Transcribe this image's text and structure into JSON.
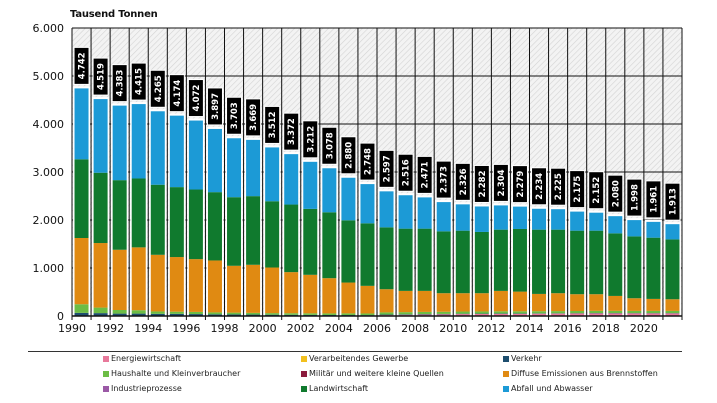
{
  "chart_data": {
    "type": "bar",
    "stacked": true,
    "title": "",
    "ylabel": "Tausend Tonnen",
    "xlabel": "",
    "ylim": [
      0,
      6000
    ],
    "yticks": [
      0,
      1000,
      2000,
      3000,
      4000,
      5000,
      6000
    ],
    "ytick_labels": [
      "0",
      "1.000",
      "2.000",
      "3.000",
      "4.000",
      "5.000",
      "6.000"
    ],
    "grid": true,
    "legend_position": "bottom",
    "categories": [
      "1990",
      "1991",
      "1992",
      "1993",
      "1994",
      "1995",
      "1996",
      "1997",
      "1998",
      "1999",
      "2000",
      "2001",
      "2002",
      "2003",
      "2004",
      "2005",
      "2006",
      "2007",
      "2008",
      "2009",
      "2010",
      "2011",
      "2012",
      "2013",
      "2014",
      "2015",
      "2016",
      "2017",
      "2018",
      "2019",
      "2020",
      "2021"
    ],
    "xtick_labels": [
      "1990",
      "1992",
      "1994",
      "1996",
      "1998",
      "2000",
      "2002",
      "2004",
      "2006",
      "2008",
      "2010",
      "2012",
      "2014",
      "2016",
      "2018",
      "2020"
    ],
    "totals": [
      4742,
      4519,
      4383,
      4415,
      4265,
      4174,
      4072,
      3897,
      3703,
      3669,
      3512,
      3372,
      3212,
      3078,
      2880,
      2748,
      2597,
      2516,
      2471,
      2373,
      2326,
      2282,
      2304,
      2279,
      2234,
      2225,
      2175,
      2152,
      2080,
      1998,
      1961,
      1913
    ],
    "total_labels": [
      "4.742",
      "4.519",
      "4.383",
      "4.415",
      "4.265",
      "4.174",
      "4.072",
      "3.897",
      "3.703",
      "3.669",
      "3.512",
      "3.372",
      "3.212",
      "3.078",
      "2.880",
      "2.748",
      "2.597",
      "2.516",
      "2.471",
      "2.373",
      "2.326",
      "2.282",
      "2.304",
      "2.279",
      "2.234",
      "2.225",
      "2.175",
      "2.152",
      "2.080",
      "1.998",
      "1.961",
      "1.913"
    ],
    "series": [
      {
        "name": "Energiewirtschaft",
        "color": "#e8799b",
        "values": [
          5,
          5,
          5,
          5,
          5,
          5,
          5,
          5,
          5,
          5,
          5,
          5,
          5,
          5,
          5,
          5,
          20,
          25,
          30,
          35,
          40,
          42,
          45,
          45,
          48,
          50,
          52,
          55,
          55,
          55,
          55,
          55
        ]
      },
      {
        "name": "Verkehr",
        "color": "#1d4e6e",
        "values": [
          60,
          55,
          45,
          45,
          40,
          40,
          35,
          30,
          28,
          25,
          22,
          20,
          18,
          16,
          15,
          13,
          10,
          10,
          10,
          8,
          8,
          8,
          8,
          8,
          7,
          7,
          7,
          7,
          7,
          6,
          6,
          6
        ]
      },
      {
        "name": "Haushalte und Kleinverbraucher",
        "color": "#6cbd45",
        "values": [
          180,
          115,
          75,
          70,
          50,
          45,
          45,
          40,
          37,
          35,
          33,
          33,
          33,
          33,
          35,
          35,
          45,
          45,
          45,
          45,
          45,
          45,
          45,
          45,
          45,
          45,
          45,
          45,
          45,
          45,
          45,
          45
        ]
      },
      {
        "name": "Verarbeitendes Gewerbe",
        "color": "#f2c01e",
        "values": [
          0,
          0,
          0,
          0,
          0,
          0,
          0,
          0,
          0,
          0,
          0,
          0,
          0,
          0,
          0,
          0,
          0,
          0,
          0,
          0,
          0,
          0,
          0,
          0,
          0,
          0,
          0,
          0,
          0,
          0,
          0,
          0
        ]
      },
      {
        "name": "Militär und weitere kleine Quellen",
        "color": "#8b1a3c",
        "values": [
          0,
          0,
          0,
          0,
          0,
          0,
          0,
          0,
          0,
          0,
          0,
          0,
          0,
          0,
          0,
          0,
          0,
          0,
          0,
          0,
          0,
          0,
          0,
          0,
          0,
          0,
          0,
          0,
          0,
          0,
          0,
          0
        ]
      },
      {
        "name": "Industrieprozesse",
        "color": "#9b59a6",
        "values": [
          0,
          0,
          0,
          0,
          0,
          0,
          0,
          0,
          0,
          0,
          0,
          0,
          0,
          0,
          0,
          0,
          0,
          0,
          0,
          0,
          0,
          0,
          0,
          0,
          0,
          0,
          0,
          0,
          0,
          0,
          0,
          0
        ]
      },
      {
        "name": "Diffuse Emissionen aus Brennstoffen",
        "color": "#e08a12",
        "values": [
          1380,
          1345,
          1255,
          1310,
          1180,
          1138,
          1100,
          1082,
          976,
          1002,
          950,
          856,
          802,
          734,
          642,
          575,
          483,
          443,
          438,
          387,
          382,
          380,
          425,
          410,
          360,
          373,
          350,
          347,
          311,
          264,
          250,
          243
        ]
      },
      {
        "name": "Landwirtschaft",
        "color": "#107a2e",
        "values": [
          1640,
          1465,
          1450,
          1435,
          1460,
          1457,
          1450,
          1423,
          1429,
          1430,
          1381,
          1408,
          1374,
          1373,
          1297,
          1303,
          1289,
          1297,
          1297,
          1289,
          1303,
          1276,
          1276,
          1305,
          1339,
          1324,
          1324,
          1324,
          1304,
          1289,
          1276,
          1247
        ]
      },
      {
        "name": "Abfall und Abwasser",
        "color": "#1c9ad6",
        "values": [
          1477,
          1534,
          1553,
          1550,
          1530,
          1489,
          1437,
          1317,
          1228,
          1172,
          1121,
          1050,
          980,
          917,
          886,
          817,
          750,
          696,
          651,
          609,
          548,
          531,
          505,
          466,
          435,
          426,
          397,
          374,
          358,
          339,
          329,
          317
        ]
      }
    ]
  },
  "legend": {
    "items": [
      {
        "label": "Energiewirtschaft",
        "color": "#e8799b"
      },
      {
        "label": "Verarbeitendes Gewerbe",
        "color": "#f2c01e"
      },
      {
        "label": "Verkehr",
        "color": "#1d4e6e"
      },
      {
        "label": "Haushalte und Kleinverbraucher",
        "color": "#6cbd45"
      },
      {
        "label": "Militär und weitere kleine Quellen",
        "color": "#8b1a3c"
      },
      {
        "label": "Diffuse Emissionen aus Brennstoffen",
        "color": "#e08a12"
      },
      {
        "label": "Industrieprozesse",
        "color": "#9b59a6"
      },
      {
        "label": "Landwirtschaft",
        "color": "#107a2e"
      },
      {
        "label": "Abfall und Abwasser",
        "color": "#1c9ad6"
      }
    ]
  }
}
